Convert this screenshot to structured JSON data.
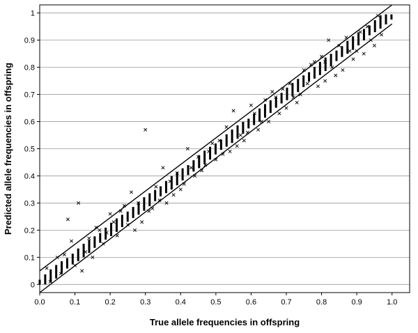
{
  "chart_data": {
    "type": "scatter",
    "xlabel": "True allele frequencies in offspring",
    "ylabel": "Predicted allele frequencies in offspring",
    "xlim": [
      0.0,
      1.05
    ],
    "ylim": [
      -0.03,
      1.03
    ],
    "x_ticks": [
      "0.0",
      "0.1",
      "0.2",
      "0.3",
      "0.4",
      "0.5",
      "0.6",
      "0.7",
      "0.8",
      "0.9",
      "1.0"
    ],
    "y_ticks": [
      "0",
      "0.1",
      "0.2",
      "0.3",
      "0.4",
      "0.5",
      "0.6",
      "0.7",
      "0.8",
      "0.9",
      "1"
    ],
    "grid": "horizontal",
    "marker": "x",
    "bounds": {
      "upper": {
        "intercept": 0.05,
        "slope": 0.98
      },
      "lower": {
        "intercept": -0.03,
        "slope": 0.99
      }
    },
    "dense_band": {
      "x_start": 0.0,
      "x_end": 1.0,
      "step": 0.0156,
      "half_width": 0.025
    },
    "outliers": [
      [
        0.3,
        0.57
      ],
      [
        0.11,
        0.3
      ],
      [
        0.08,
        0.24
      ],
      [
        0.12,
        0.05
      ],
      [
        0.02,
        0.06
      ],
      [
        0.05,
        0.1
      ],
      [
        0.09,
        0.16
      ],
      [
        0.13,
        0.12
      ],
      [
        0.16,
        0.21
      ],
      [
        0.2,
        0.26
      ],
      [
        0.23,
        0.27
      ],
      [
        0.27,
        0.2
      ],
      [
        0.26,
        0.34
      ],
      [
        0.29,
        0.23
      ],
      [
        0.32,
        0.28
      ],
      [
        0.36,
        0.3
      ],
      [
        0.35,
        0.43
      ],
      [
        0.38,
        0.33
      ],
      [
        0.41,
        0.37
      ],
      [
        0.42,
        0.5
      ],
      [
        0.44,
        0.4
      ],
      [
        0.47,
        0.44
      ],
      [
        0.5,
        0.46
      ],
      [
        0.52,
        0.48
      ],
      [
        0.53,
        0.58
      ],
      [
        0.55,
        0.64
      ],
      [
        0.56,
        0.51
      ],
      [
        0.58,
        0.53
      ],
      [
        0.6,
        0.66
      ],
      [
        0.62,
        0.57
      ],
      [
        0.65,
        0.6
      ],
      [
        0.66,
        0.71
      ],
      [
        0.7,
        0.65
      ],
      [
        0.73,
        0.67
      ],
      [
        0.75,
        0.79
      ],
      [
        0.79,
        0.73
      ],
      [
        0.8,
        0.84
      ],
      [
        0.81,
        0.75
      ],
      [
        0.82,
        0.9
      ],
      [
        0.84,
        0.77
      ],
      [
        0.86,
        0.79
      ],
      [
        0.87,
        0.91
      ],
      [
        0.89,
        0.83
      ],
      [
        0.9,
        0.86
      ],
      [
        0.92,
        0.85
      ],
      [
        0.93,
        0.95
      ],
      [
        0.95,
        0.88
      ],
      [
        0.96,
        0.99
      ],
      [
        0.97,
        0.92
      ],
      [
        0.14,
        0.17
      ],
      [
        0.18,
        0.15
      ],
      [
        0.21,
        0.23
      ],
      [
        0.24,
        0.29
      ],
      [
        0.31,
        0.27
      ],
      [
        0.33,
        0.36
      ],
      [
        0.39,
        0.41
      ],
      [
        0.45,
        0.47
      ],
      [
        0.49,
        0.52
      ],
      [
        0.54,
        0.49
      ],
      [
        0.57,
        0.55
      ],
      [
        0.61,
        0.63
      ],
      [
        0.64,
        0.68
      ],
      [
        0.68,
        0.63
      ],
      [
        0.71,
        0.74
      ],
      [
        0.74,
        0.7
      ],
      [
        0.77,
        0.81
      ],
      [
        0.78,
        0.82
      ],
      [
        0.83,
        0.8
      ],
      [
        0.85,
        0.88
      ],
      [
        0.88,
        0.86
      ],
      [
        0.91,
        0.93
      ],
      [
        0.94,
        0.9
      ],
      [
        0.03,
        0.01
      ],
      [
        0.06,
        0.04
      ],
      [
        0.07,
        0.11
      ],
      [
        0.1,
        0.07
      ],
      [
        0.15,
        0.1
      ],
      [
        0.17,
        0.2
      ],
      [
        0.19,
        0.19
      ],
      [
        0.22,
        0.18
      ],
      [
        0.25,
        0.22
      ],
      [
        0.28,
        0.3
      ],
      [
        0.34,
        0.31
      ],
      [
        0.37,
        0.38
      ],
      [
        0.4,
        0.35
      ],
      [
        0.43,
        0.43
      ],
      [
        0.46,
        0.42
      ],
      [
        0.48,
        0.49
      ],
      [
        0.51,
        0.53
      ],
      [
        0.59,
        0.56
      ],
      [
        0.63,
        0.6
      ],
      [
        0.67,
        0.69
      ],
      [
        0.69,
        0.72
      ],
      [
        0.72,
        0.69
      ],
      [
        0.76,
        0.74
      ],
      [
        0.81,
        0.82
      ]
    ]
  }
}
